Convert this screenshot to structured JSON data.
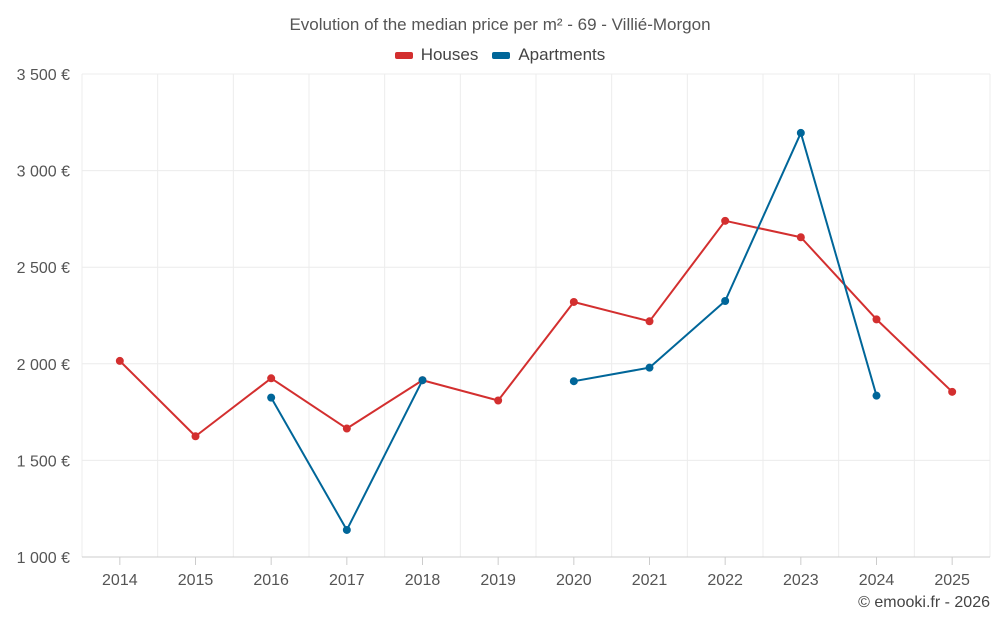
{
  "chart_data": {
    "type": "line",
    "title": "Evolution of the median price per m² - 69 - Villié-Morgon",
    "categories": [
      "2014",
      "2015",
      "2016",
      "2017",
      "2018",
      "2019",
      "2020",
      "2021",
      "2022",
      "2023",
      "2024",
      "2025"
    ],
    "series": [
      {
        "name": "Houses",
        "color": "#d32f2f",
        "values": [
          2015,
          1625,
          1925,
          1665,
          1915,
          1810,
          2320,
          2220,
          2740,
          2655,
          2230,
          1855
        ]
      },
      {
        "name": "Apartments",
        "color": "#006699",
        "values": [
          null,
          null,
          1825,
          1140,
          1915,
          null,
          1910,
          1980,
          2325,
          3195,
          1835,
          null
        ]
      }
    ],
    "ylim": [
      1000,
      3500
    ],
    "yticks": [
      1000,
      1500,
      2000,
      2500,
      3000,
      3500
    ],
    "ytick_labels": [
      "1 000 €",
      "1 500 €",
      "2 000 €",
      "2 500 €",
      "3 000 €",
      "3 500 €"
    ],
    "grid": true,
    "legend_position": "top-center"
  },
  "credit": "© emooki.fr - 2026"
}
